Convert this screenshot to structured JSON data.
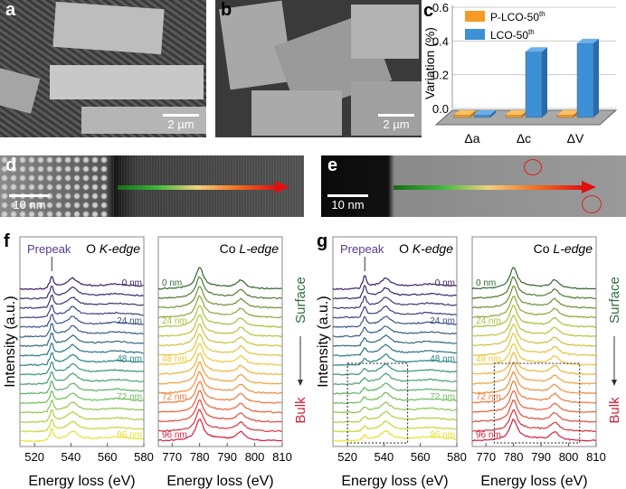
{
  "panels": {
    "a": {
      "label": "a",
      "scale": "2 µm"
    },
    "b": {
      "label": "b",
      "scale": "2 µm"
    },
    "d": {
      "label": "d",
      "scale": "10 nm"
    },
    "e": {
      "label": "e",
      "scale": "10 nm"
    },
    "f": {
      "label": "f"
    },
    "g": {
      "label": "g"
    }
  },
  "chart_data": [
    {
      "panel": "c",
      "type": "bar",
      "title": "",
      "ylabel": "Variation (%)",
      "ylim": [
        0,
        0.6
      ],
      "yticks": [
        "0.0",
        "0.2",
        "0.4",
        "0.6"
      ],
      "categories": [
        "Δa",
        "Δc",
        "ΔV"
      ],
      "series": [
        {
          "name": "P-LCO-50",
          "sup": "th",
          "color": "#f59a23",
          "values": [
            -0.01,
            0.01,
            0.005
          ]
        },
        {
          "name": "LCO-50",
          "sup": "th",
          "color": "#3d8fd6",
          "values": [
            0.005,
            0.39,
            0.44
          ]
        }
      ]
    },
    {
      "panel": "f-left",
      "type": "line",
      "title": "O K-edge",
      "annotation": "Prepeak",
      "xlabel": "Energy loss (eV)",
      "ylabel": "Intensity (a.u.)",
      "xlim": [
        512,
        580
      ],
      "xticks": [
        "520",
        "540",
        "560",
        "580"
      ],
      "depth_labels": [
        "0 nm",
        "24 nm",
        "48 nm",
        "72 nm",
        "96 nm"
      ]
    },
    {
      "panel": "f-right",
      "type": "line",
      "title": "Co L-edge",
      "xlabel": "Energy loss (eV)",
      "xlim": [
        765,
        810
      ],
      "xticks": [
        "770",
        "780",
        "790",
        "800",
        "810"
      ],
      "depth_labels": [
        "0 nm",
        "24 nm",
        "48 nm",
        "72 nm",
        "96 nm"
      ],
      "arrow_top": "Surface",
      "arrow_bottom": "Bulk"
    },
    {
      "panel": "g-left",
      "type": "line",
      "title": "O K-edge",
      "annotation": "Prepeak",
      "xlabel": "Energy loss (eV)",
      "ylabel": "Intensity (a.u.)",
      "xlim": [
        512,
        580
      ],
      "xticks": [
        "520",
        "540",
        "560",
        "580"
      ],
      "depth_labels": [
        "0 nm",
        "24 nm",
        "48 nm",
        "72 nm",
        "96 nm"
      ]
    },
    {
      "panel": "g-right",
      "type": "line",
      "title": "Co L-edge",
      "xlabel": "Energy loss (eV)",
      "xlim": [
        765,
        810
      ],
      "xticks": [
        "770",
        "780",
        "790",
        "800",
        "810"
      ],
      "depth_labels": [
        "0 nm",
        "24 nm",
        "48 nm",
        "72 nm",
        "96 nm"
      ],
      "arrow_top": "Surface",
      "arrow_bottom": "Bulk"
    }
  ]
}
